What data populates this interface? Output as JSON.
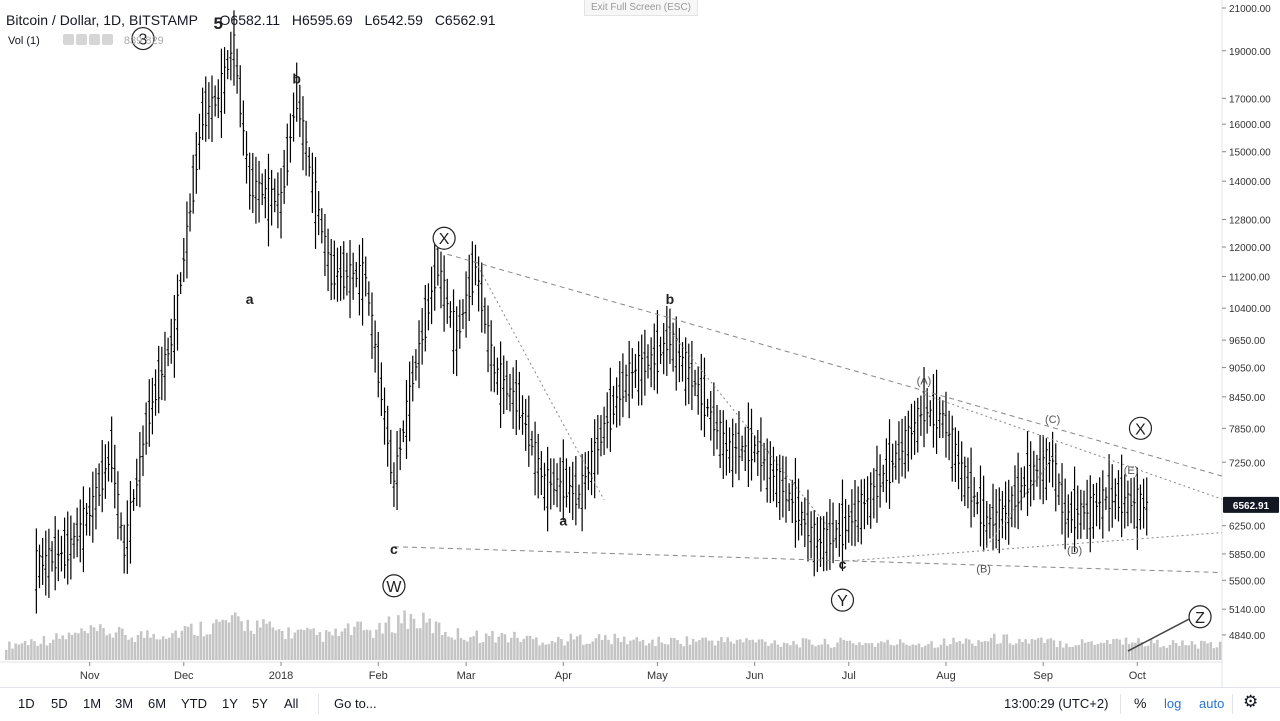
{
  "header": {
    "symbol": "Bitcoin / Dollar, 1D, BITSTAMP",
    "open": "O6582.11",
    "high": "H6595.69",
    "low": "L6542.59",
    "close": "C6562.91",
    "volume_label": "Vol (1)",
    "volume_values": "839  829",
    "exit_fullscreen": "Exit Full Screen (ESC)"
  },
  "bottom_bar": {
    "timeframes": [
      "1D",
      "5D",
      "1M",
      "3M",
      "6M",
      "YTD",
      "1Y",
      "5Y",
      "All"
    ],
    "goto_label": "Go to...",
    "time": "13:00:29 (UTC+2)",
    "percent_label": "%",
    "log_label": "log",
    "auto_label": "auto",
    "settings_icon": "gear-icon"
  },
  "colors": {
    "candle": "#000000",
    "volume": "#c4c4c4",
    "price_badge_bg": "#131722",
    "price_badge_text": "#ffffff",
    "trendline": "#888888",
    "link_blue": "#2a74c9"
  },
  "chart_data": {
    "type": "ohlc",
    "scale": "log",
    "current_price": "6562.91",
    "x_axis_labels": [
      "Nov",
      "Dec",
      "2018",
      "Feb",
      "Mar",
      "Apr",
      "May",
      "Jun",
      "Jul",
      "Aug",
      "Sep",
      "Oct"
    ],
    "y_axis_labels": [
      "21000.00",
      "19000.00",
      "17000.00",
      "16000.00",
      "15000.00",
      "14000.00",
      "12800.00",
      "12000.00",
      "11200.00",
      "10400.00",
      "9650.00",
      "9050.00",
      "8450.00",
      "7850.00",
      "7250.00",
      "6250.00",
      "5850.00",
      "5500.00",
      "5140.00",
      "4840.00"
    ],
    "ylim": [
      4650,
      21000
    ],
    "x": [
      "2017-10-15",
      "2017-10-25",
      "2017-11-01",
      "2017-11-08",
      "2017-11-12",
      "2017-11-20",
      "2017-11-28",
      "2017-12-07",
      "2017-12-12",
      "2017-12-17",
      "2017-12-22",
      "2018-01-01",
      "2018-01-06",
      "2018-01-12",
      "2018-01-17",
      "2018-01-28",
      "2018-02-06",
      "2018-02-12",
      "2018-02-20",
      "2018-02-26",
      "2018-03-04",
      "2018-03-10",
      "2018-03-18",
      "2018-03-26",
      "2018-04-01",
      "2018-04-06",
      "2018-04-15",
      "2018-04-22",
      "2018-05-01",
      "2018-05-05",
      "2018-05-15",
      "2018-05-23",
      "2018-06-01",
      "2018-06-12",
      "2018-06-21",
      "2018-06-29",
      "2018-07-08",
      "2018-07-17",
      "2018-07-25",
      "2018-07-31",
      "2018-08-07",
      "2018-08-14",
      "2018-08-21",
      "2018-08-27",
      "2018-09-04",
      "2018-09-08",
      "2018-09-16",
      "2018-09-22",
      "2018-09-30",
      "2018-10-04"
    ],
    "y": [
      5700,
      5900,
      6450,
      7400,
      5900,
      8100,
      9850,
      16300,
      17000,
      19300,
      13900,
      13400,
      17100,
      13500,
      11300,
      11200,
      6900,
      8800,
      11500,
      9700,
      11500,
      9000,
      8300,
      6900,
      6900,
      6700,
      8000,
      8900,
      9300,
      9700,
      8500,
      7500,
      7500,
      6700,
      6000,
      6200,
      6700,
      7400,
      8200,
      8050,
      7000,
      6300,
      6500,
      7000,
      7300,
      6400,
      6500,
      6700,
      6600,
      6562.91
    ],
    "volumes": [
      30,
      40,
      45,
      55,
      60,
      50,
      55,
      60,
      70,
      80,
      75,
      60,
      55,
      50,
      65,
      60,
      90,
      75,
      55,
      50,
      50,
      45,
      40,
      45,
      45,
      42,
      38,
      40,
      42,
      40,
      40,
      38,
      36,
      35,
      38,
      34,
      36,
      35,
      38,
      40,
      45,
      40,
      38,
      35,
      40,
      42,
      36,
      34,
      32,
      30
    ],
    "wave_labels": [
      {
        "text": "a",
        "date": "2017-12-22",
        "price": 10500
      },
      {
        "text": "b",
        "date": "2018-01-06",
        "price": 17600
      },
      {
        "text": "c",
        "date": "2018-02-06",
        "price": 5850
      },
      {
        "text": "a",
        "date": "2018-04-01",
        "price": 6250
      },
      {
        "text": "b",
        "date": "2018-05-05",
        "price": 10500
      },
      {
        "text": "c",
        "date": "2018-06-29",
        "price": 5650
      },
      {
        "text": "(A)",
        "date": "2018-07-25",
        "price": 8700
      },
      {
        "text": "(B)",
        "date": "2018-08-13",
        "price": 5600
      },
      {
        "text": "(C)",
        "date": "2018-09-04",
        "price": 7950
      },
      {
        "text": "(D)",
        "date": "2018-09-11",
        "price": 5850
      },
      {
        "text": "(E)",
        "date": "2018-09-29",
        "price": 7050
      },
      {
        "text": "5",
        "date": "2017-12-12",
        "price": 20000
      }
    ],
    "circle_labels": [
      {
        "text": "3",
        "date": "2017-11-18",
        "price": 19550
      },
      {
        "text": "X",
        "date": "2018-02-22",
        "price": 12250
      },
      {
        "text": "W",
        "date": "2018-02-06",
        "price": 5430
      },
      {
        "text": "Y",
        "date": "2018-06-29",
        "price": 5250
      },
      {
        "text": "X",
        "date": "2018-10-02",
        "price": 7850
      },
      {
        "text": "Z",
        "date": "2018-10-21",
        "price": 5050
      }
    ],
    "trendlines": [
      {
        "style": "dashed",
        "from": {
          "date": "2018-02-23",
          "price": 11800
        },
        "to": {
          "date": "2018-10-28",
          "price": 7020
        }
      },
      {
        "style": "dashed",
        "from": {
          "date": "2018-02-06",
          "price": 5950
        },
        "to": {
          "date": "2018-10-28",
          "price": 5600
        }
      },
      {
        "style": "dotted",
        "from": {
          "date": "2018-03-04",
          "price": 11600
        },
        "to": {
          "date": "2018-04-14",
          "price": 6640
        }
      },
      {
        "style": "dotted",
        "from": {
          "date": "2018-05-05",
          "price": 9850
        },
        "to": {
          "date": "2018-06-25",
          "price": 6200
        }
      },
      {
        "style": "dotted",
        "from": {
          "date": "2018-06-29",
          "price": 5750
        },
        "to": {
          "date": "2018-10-28",
          "price": 6150
        }
      },
      {
        "style": "dotted",
        "from": {
          "date": "2018-07-25",
          "price": 8500
        },
        "to": {
          "date": "2018-10-28",
          "price": 6650
        }
      },
      {
        "style": "dotted",
        "from": {
          "date": "2018-08-13",
          "price": 5900
        },
        "to": {
          "date": "2018-09-05",
          "price": 7400
        }
      },
      {
        "style": "solid",
        "from": {
          "date": "2018-09-28",
          "price": 4660
        },
        "to": {
          "date": "2018-10-23",
          "price": 5130
        }
      }
    ]
  }
}
